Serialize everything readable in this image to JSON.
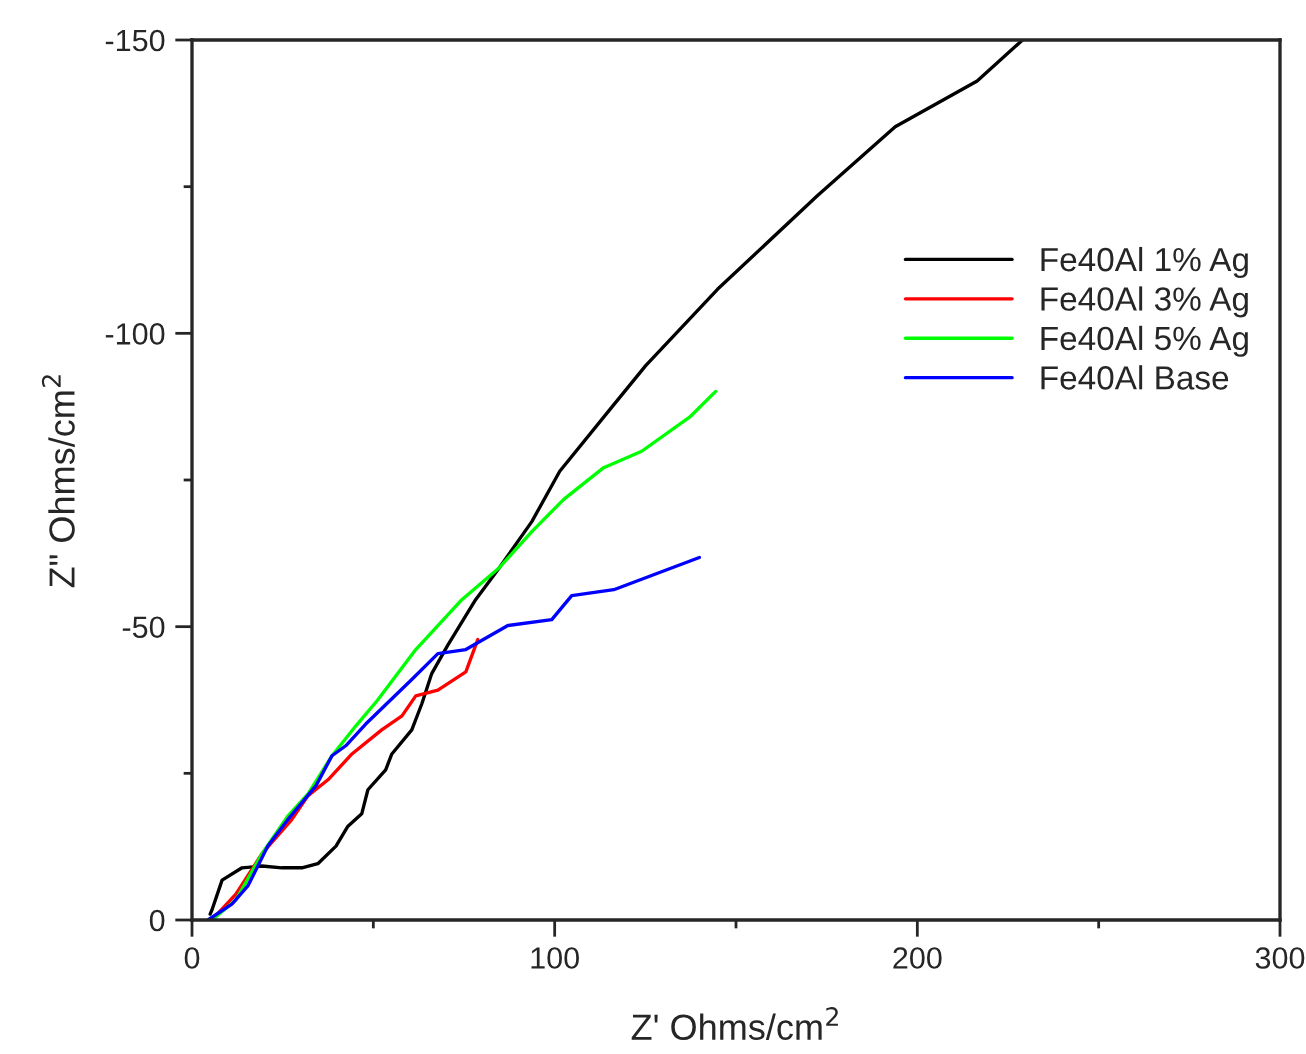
{
  "chart_data": {
    "type": "line",
    "xlabel": "Z' Ohms/cm$^{2}$",
    "ylabel": "Z\" Ohms/cm$^{2}$",
    "xlim": [
      0,
      300
    ],
    "ylim": [
      0,
      -150
    ],
    "xticks": [
      0,
      {
        "value": 50,
        "label": null
      },
      100,
      {
        "value": 150,
        "label": null
      },
      200,
      {
        "value": 250,
        "label": null
      },
      300
    ],
    "yticks": [
      0,
      {
        "value": -25,
        "label": null
      },
      -50,
      {
        "value": -75,
        "label": null
      },
      -100,
      {
        "value": -125,
        "label": null
      },
      -150
    ],
    "grid": false,
    "legend": "right",
    "marker": "none",
    "line_style": "solid",
    "series": [
      {
        "name": "Fe40Al 1% Ag",
        "color": "#000000",
        "x": [
          5,
          5.5,
          8.3,
          13.8,
          19.3,
          24.8,
          30.3,
          34.7,
          39.7,
          43.0,
          46.8,
          48.5,
          53.4,
          55.1,
          60.6,
          63.4,
          66.1,
          70.5,
          78.2,
          84.8,
          93.7,
          101.4,
          115.2,
          125.1,
          144.9,
          172.5,
          193.9,
          216.5,
          229
        ],
        "values": [
          -1,
          -1.7,
          -6.8,
          -8.9,
          -9.2,
          -8.9,
          -8.9,
          -9.6,
          -12.6,
          -16.0,
          -18.1,
          -22.2,
          -25.6,
          -28.3,
          -32.4,
          -36.9,
          -42.0,
          -46.8,
          -54.6,
          -60.1,
          -67.9,
          -76.5,
          -87.0,
          -94.5,
          -107.5,
          -123.5,
          -135.2,
          -143.0,
          -150
        ]
      },
      {
        "name": "Fe40Al 3% Ag",
        "color": "#ff0000",
        "x": [
          5.5,
          12.1,
          19.3,
          27.5,
          32.0,
          37.5,
          44.1,
          52.3,
          57.9,
          61.7,
          67.8,
          75.5,
          78.8
        ],
        "values": [
          0,
          -4.4,
          -11.3,
          -17.1,
          -21.2,
          -23.9,
          -28.3,
          -32.4,
          -34.8,
          -38.2,
          -39.2,
          -42.3,
          -47.8
        ]
      },
      {
        "name": "Fe40Al 5% Ag",
        "color": "#00ff00",
        "x": [
          5.5,
          12.1,
          19.3,
          26.4,
          32.0,
          38.6,
          45.2,
          51.2,
          61.7,
          74.4,
          84.8,
          93.7,
          102.5,
          113.5,
          124.0,
          137.2,
          144.4
        ],
        "values": [
          0,
          -3.4,
          -11.3,
          -17.7,
          -21.5,
          -28.0,
          -33.1,
          -37.5,
          -46.1,
          -54.6,
          -60.1,
          -66.2,
          -71.7,
          -77.1,
          -79.9,
          -85.7,
          -90.1
        ]
      },
      {
        "name": "Fe40Al Base",
        "color": "#0000ff",
        "x": [
          4.4,
          11.0,
          15.4,
          20.9,
          26.4,
          34.2,
          38.6,
          42.4,
          47.9,
          60.6,
          67.8,
          75.5,
          87.1,
          99.2,
          104.7,
          116.3,
          139.9
        ],
        "values": [
          0,
          -2.7,
          -5.8,
          -12.6,
          -17.1,
          -22.9,
          -28.0,
          -29.7,
          -33.4,
          -41.0,
          -45.4,
          -46.1,
          -50.2,
          -51.2,
          -55.3,
          -56.3,
          -61.8
        ]
      }
    ]
  }
}
